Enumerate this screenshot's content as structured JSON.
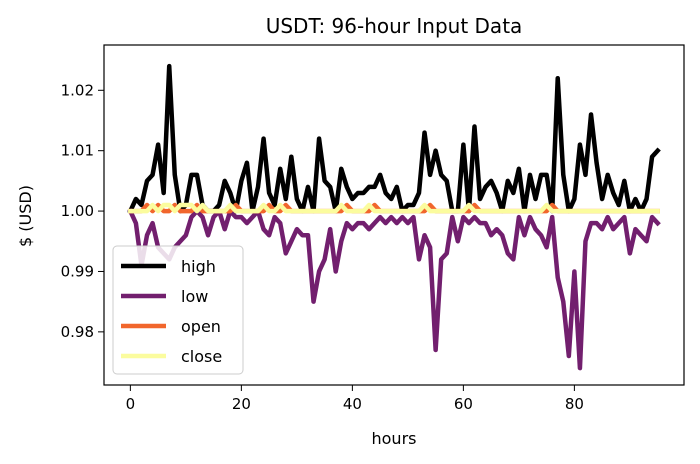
{
  "chart_data": {
    "type": "line",
    "title": "USDT: 96-hour Input Data",
    "xlabel": "hours",
    "ylabel": "$ (USD)",
    "xlim": [
      -4.75,
      99.75
    ],
    "ylim": [
      0.9712,
      1.0275
    ],
    "xticks": [
      0,
      20,
      40,
      60,
      80
    ],
    "xtick_labels": [
      "0",
      "20",
      "40",
      "60",
      "80"
    ],
    "yticks": [
      0.98,
      0.99,
      1.0,
      1.01,
      1.02
    ],
    "ytick_labels": [
      "0.98",
      "0.99",
      "1.00",
      "1.01",
      "1.02"
    ],
    "grid": false,
    "legend_position": "lower-left",
    "series": [
      {
        "name": "high",
        "color": "#000000",
        "values": [
          1.0,
          1.002,
          1.001,
          1.005,
          1.006,
          1.011,
          1.003,
          1.024,
          1.006,
          1.0,
          1.001,
          1.006,
          1.006,
          1.001,
          1.0,
          1.0,
          1.001,
          1.005,
          1.003,
          1.0,
          1.005,
          1.008,
          1.0,
          1.004,
          1.012,
          1.003,
          1.001,
          1.007,
          1.002,
          1.009,
          1.002,
          1.0,
          1.004,
          1.0,
          1.012,
          1.005,
          1.004,
          1.0,
          1.007,
          1.004,
          1.002,
          1.003,
          1.003,
          1.004,
          1.004,
          1.006,
          1.003,
          1.002,
          1.004,
          1.0,
          1.001,
          1.001,
          1.003,
          1.013,
          1.006,
          1.01,
          1.006,
          1.005,
          1.0,
          1.0,
          1.011,
          1.0,
          1.014,
          1.002,
          1.004,
          1.005,
          1.003,
          1.0,
          1.005,
          1.003,
          1.007,
          1.0,
          1.006,
          1.002,
          1.006,
          1.006,
          1.0,
          1.022,
          1.006,
          1.0,
          1.002,
          1.011,
          1.006,
          1.016,
          1.008,
          1.002,
          1.006,
          1.003,
          1.001,
          1.005,
          1.0,
          1.002,
          1.0,
          1.002,
          1.009,
          1.01
        ]
      },
      {
        "name": "low",
        "color": "#721f6e",
        "values": [
          1.0,
          0.998,
          0.991,
          0.996,
          0.998,
          0.994,
          0.993,
          0.992,
          0.994,
          0.995,
          0.996,
          0.999,
          1.0,
          0.999,
          0.996,
          0.999,
          1.0,
          0.997,
          1.0,
          0.999,
          0.999,
          0.998,
          0.999,
          1.0,
          0.997,
          0.996,
          0.999,
          0.998,
          0.993,
          0.995,
          0.997,
          0.996,
          0.996,
          0.985,
          0.99,
          0.992,
          0.997,
          0.99,
          0.995,
          0.998,
          0.997,
          0.998,
          0.998,
          0.997,
          0.998,
          0.999,
          0.998,
          0.999,
          0.998,
          0.999,
          0.998,
          0.999,
          0.992,
          0.996,
          0.994,
          0.977,
          0.992,
          0.993,
          0.999,
          0.995,
          0.999,
          0.998,
          0.999,
          0.998,
          0.998,
          0.996,
          0.997,
          0.996,
          0.993,
          0.992,
          0.999,
          0.996,
          0.999,
          0.997,
          0.996,
          0.994,
          0.999,
          0.989,
          0.985,
          0.976,
          0.99,
          0.974,
          0.995,
          0.998,
          0.998,
          0.997,
          0.999,
          0.997,
          0.998,
          0.999,
          0.993,
          0.997,
          0.996,
          0.995,
          0.999,
          0.998
        ]
      },
      {
        "name": "open",
        "color": "#f1662c",
        "values": [
          1.0,
          1.0,
          1.0,
          1.001,
          1.0,
          1.001,
          1.0,
          1.0,
          1.001,
          1.0,
          1.0,
          1.0,
          1.001,
          1.0,
          1.0,
          1.0,
          1.0,
          1.0,
          1.0,
          1.001,
          1.0,
          1.0,
          1.0,
          1.0,
          1.0,
          1.001,
          1.0,
          1.0,
          1.001,
          1.0,
          1.0,
          1.0,
          1.0,
          1.0,
          1.0,
          1.0,
          1.0,
          1.0,
          1.0,
          1.001,
          1.0,
          1.0,
          1.0,
          1.0,
          1.001,
          1.0,
          1.0,
          1.0,
          1.0,
          1.0,
          1.0,
          1.0,
          1.0,
          1.0,
          1.001,
          1.0,
          1.0,
          1.0,
          1.0,
          1.0,
          1.0,
          1.0,
          1.001,
          1.0,
          1.0,
          1.0,
          1.0,
          1.0,
          1.0,
          1.0,
          1.0,
          1.0,
          1.0,
          1.0,
          1.0,
          1.0,
          1.001,
          1.0,
          1.0,
          1.0,
          1.0,
          1.0,
          1.0,
          1.0,
          1.0,
          1.0,
          1.0,
          1.0,
          1.0,
          1.0,
          1.0,
          1.0,
          1.0,
          1.0,
          1.0,
          1.0
        ]
      },
      {
        "name": "close",
        "color": "#fbfc9e",
        "values": [
          1.0,
          1.0,
          1.0,
          1.0,
          1.001,
          1.0,
          1.001,
          1.001,
          1.0,
          1.001,
          1.001,
          1.001,
          1.0,
          1.001,
          1.0,
          1.0,
          1.0,
          1.0,
          1.001,
          1.0,
          1.0,
          1.0,
          1.0,
          1.0,
          1.001,
          1.0,
          1.0,
          1.001,
          1.0,
          1.0,
          1.0,
          1.0,
          1.0,
          1.0,
          1.0,
          1.0,
          1.0,
          1.0,
          1.001,
          1.0,
          1.0,
          1.0,
          1.0,
          1.001,
          1.0,
          1.0,
          1.0,
          1.0,
          1.0,
          1.0,
          1.0,
          1.0,
          1.0,
          1.001,
          1.0,
          1.0,
          1.0,
          1.0,
          1.0,
          1.0,
          1.0,
          1.001,
          1.0,
          1.0,
          1.0,
          1.0,
          1.0,
          1.0,
          1.0,
          1.0,
          1.0,
          1.0,
          1.0,
          1.0,
          1.0,
          1.001,
          1.0,
          1.0,
          1.0,
          1.0,
          1.0,
          1.0,
          1.0,
          1.0,
          1.0,
          1.0,
          1.0,
          1.0,
          1.0,
          1.0,
          1.0,
          1.0,
          1.0,
          1.0,
          1.0,
          1.0
        ]
      }
    ]
  }
}
